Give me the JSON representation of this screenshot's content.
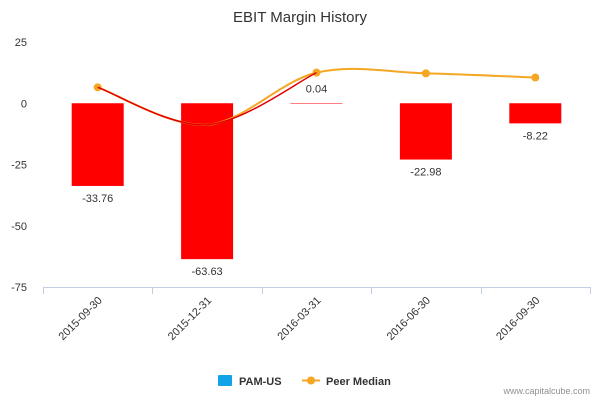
{
  "chart_data": {
    "type": "bar",
    "title": "EBIT Margin History",
    "categories": [
      "2015-09-30",
      "2015-12-31",
      "2016-03-31",
      "2016-06-30",
      "2016-09-30"
    ],
    "series": [
      {
        "name": "PAM-US",
        "type": "bar",
        "values": [
          -33.76,
          -63.63,
          0.04,
          -22.98,
          -8.22
        ],
        "data_labels": [
          "-33.76",
          "-63.63",
          "0.04",
          "-22.98",
          "-8.22"
        ],
        "color": "#ff0000",
        "legend_color": "#11a3e8"
      },
      {
        "name": "Peer Median",
        "type": "line",
        "values": [
          6.5,
          -8.8,
          12.5,
          12.2,
          10.5
        ],
        "color": "#f5a623"
      }
    ],
    "trend_color": "#e00000",
    "y_ticks": [
      "25",
      "0",
      "-25",
      "-50",
      "-75"
    ],
    "y_tick_values": [
      25,
      0,
      -25,
      -50,
      -75
    ],
    "ylim": [
      -75,
      25
    ],
    "grid": false,
    "legend_position": "bottom-center",
    "credit": "www.capitalcube.com"
  }
}
